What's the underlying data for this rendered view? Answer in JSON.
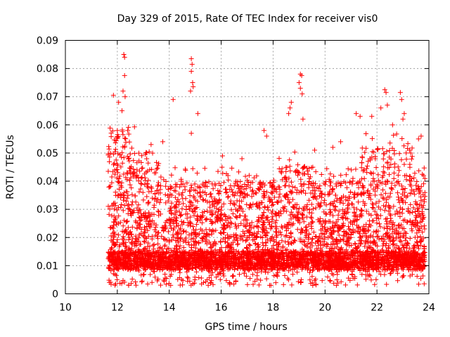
{
  "chart_data": {
    "type": "scatter",
    "title": "Day 329 of 2015, Rate Of TEC Index for receiver vis0",
    "xlabel": "GPS time / hours",
    "ylabel": "ROTI / TECUs",
    "xlim": [
      10,
      24
    ],
    "ylim": [
      0,
      0.09
    ],
    "x_ticks": [
      10,
      12,
      14,
      16,
      18,
      20,
      22,
      24
    ],
    "x_tick_labels": [
      "10",
      "12",
      "14",
      "16",
      "18",
      "20",
      "22",
      "24"
    ],
    "y_ticks": [
      0,
      0.01,
      0.02,
      0.03,
      0.04,
      0.05,
      0.06,
      0.07,
      0.08,
      0.09
    ],
    "y_tick_labels": [
      "0",
      "0.01",
      "0.02",
      "0.03",
      "0.04",
      "0.05",
      "0.06",
      "0.07",
      "0.08",
      "0.09"
    ],
    "grid": true,
    "marker": "+",
    "series_color": "#ff0000",
    "series": [
      {
        "name": "ROTI",
        "x_range": [
          11.65,
          23.85
        ],
        "y_range": [
          0.003,
          0.085
        ],
        "points": [
          [
            12.25,
            0.085
          ],
          [
            12.28,
            0.084
          ],
          [
            12.28,
            0.0775
          ],
          [
            12.22,
            0.072
          ],
          [
            12.3,
            0.07
          ],
          [
            11.85,
            0.0705
          ],
          [
            12.05,
            0.068
          ],
          [
            12.18,
            0.065
          ],
          [
            12.4,
            0.058
          ],
          [
            12.0,
            0.058
          ],
          [
            14.85,
            0.0835
          ],
          [
            14.88,
            0.0815
          ],
          [
            14.85,
            0.079
          ],
          [
            14.9,
            0.075
          ],
          [
            14.92,
            0.0735
          ],
          [
            14.82,
            0.072
          ],
          [
            15.1,
            0.064
          ],
          [
            14.15,
            0.069
          ],
          [
            14.85,
            0.057
          ],
          [
            19.05,
            0.078
          ],
          [
            19.1,
            0.0775
          ],
          [
            19.0,
            0.075
          ],
          [
            19.05,
            0.073
          ],
          [
            19.12,
            0.071
          ],
          [
            18.7,
            0.068
          ],
          [
            18.65,
            0.066
          ],
          [
            18.6,
            0.064
          ],
          [
            19.15,
            0.062
          ],
          [
            22.3,
            0.0725
          ],
          [
            22.35,
            0.0715
          ],
          [
            22.9,
            0.0715
          ],
          [
            22.95,
            0.069
          ],
          [
            22.4,
            0.067
          ],
          [
            22.15,
            0.066
          ],
          [
            23.05,
            0.064
          ],
          [
            23.0,
            0.062
          ],
          [
            21.2,
            0.064
          ],
          [
            21.35,
            0.063
          ],
          [
            21.8,
            0.063
          ],
          [
            22.6,
            0.06
          ],
          [
            23.7,
            0.056
          ],
          [
            23.6,
            0.055
          ],
          [
            17.65,
            0.058
          ],
          [
            17.75,
            0.056
          ],
          [
            16.05,
            0.049
          ],
          [
            16.8,
            0.048
          ],
          [
            13.3,
            0.053
          ],
          [
            13.75,
            0.054
          ],
          [
            20.6,
            0.054
          ],
          [
            20.3,
            0.052
          ],
          [
            19.6,
            0.051
          ]
        ]
      }
    ]
  }
}
